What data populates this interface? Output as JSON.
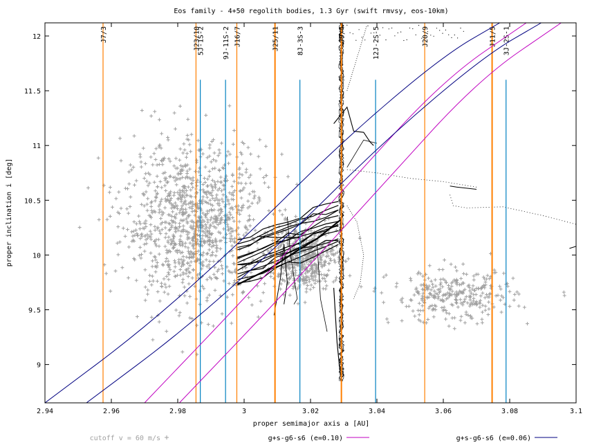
{
  "chart_data": {
    "type": "scatter",
    "title": "Eos family - 4+50 regolith bodies, 1.3 Gyr (swift rmvsy, eos-10km)",
    "xlabel": "proper semimajor axis a [AU]",
    "ylabel": "proper inclination i [deg]",
    "xlim": [
      2.94,
      3.1
    ],
    "ylim": [
      8.65,
      12.12
    ],
    "x_ticks": [
      {
        "value": 2.94,
        "label": "2.94"
      },
      {
        "value": 2.96,
        "label": "2.96"
      },
      {
        "value": 2.98,
        "label": "2.98"
      },
      {
        "value": 3.0,
        "label": "3"
      },
      {
        "value": 3.02,
        "label": "3.02"
      },
      {
        "value": 3.04,
        "label": "3.04"
      },
      {
        "value": 3.06,
        "label": "3.06"
      },
      {
        "value": 3.08,
        "label": "3.08"
      },
      {
        "value": 3.1,
        "label": "3.1"
      }
    ],
    "y_ticks": [
      {
        "value": 9,
        "label": "9"
      },
      {
        "value": 9.5,
        "label": "9.5"
      },
      {
        "value": 10,
        "label": "10"
      },
      {
        "value": 10.5,
        "label": "10.5"
      },
      {
        "value": 11,
        "label": "11"
      },
      {
        "value": 11.5,
        "label": "11.5"
      },
      {
        "value": 12,
        "label": "12"
      }
    ],
    "grid": false,
    "legend_position": "bottom",
    "colors": {
      "family": "#a0a0a0",
      "resonance_jupiter": "#ff7f00",
      "resonance_three_body": "#0080c0",
      "secular_e010": "#c000c0",
      "secular_e006": "#000080",
      "tracks": "#000000"
    },
    "series": [
      {
        "name": "cutoff v = 60 m/s",
        "marker": "+",
        "clusters": [
          {
            "center": [
              2.985,
              10.3
            ],
            "spread": [
              0.0125,
              0.42
            ],
            "count": 1150
          },
          {
            "center": [
              3.063,
              9.62
            ],
            "spread": [
              0.011,
              0.14
            ],
            "count": 320
          },
          {
            "center": [
              3.018,
              9.98
            ],
            "spread": [
              0.006,
              0.17
            ],
            "count": 520
          }
        ]
      },
      {
        "name": "g+s-g6-s6 (e=0.10)",
        "kind": "line",
        "x": [
          2.97,
          3.0,
          3.03,
          3.06,
          3.085
        ],
        "y": [
          8.65,
          9.6,
          10.6,
          11.6,
          12.12
        ]
      },
      {
        "name": "g+s-g6-s6 (e=0.06)",
        "kind": "line",
        "x": [
          2.94,
          2.97,
          3.0,
          3.03,
          3.06,
          3.077
        ],
        "y": [
          8.65,
          9.33,
          10.15,
          11.05,
          11.82,
          12.12
        ]
      }
    ],
    "resonances": [
      {
        "label": "J7/3",
        "a": 2.9575,
        "family": "jupiter"
      },
      {
        "label": "J23/10",
        "a": 2.9855,
        "family": "jupiter"
      },
      {
        "label": "5J-1S-2",
        "a": 2.9868,
        "family": "three-body"
      },
      {
        "label": "9J-11S-2",
        "a": 2.9944,
        "family": "three-body"
      },
      {
        "label": "J16/7",
        "a": 2.9978,
        "family": "jupiter"
      },
      {
        "label": "J25/11",
        "a": 3.0093,
        "family": "jupiter"
      },
      {
        "label": "8J-3S-3",
        "a": 3.0168,
        "family": "three-body"
      },
      {
        "label": "J9/4",
        "a": 3.0293,
        "family": "jupiter"
      },
      {
        "label": "12J-2S-5",
        "a": 3.0396,
        "family": "three-body"
      },
      {
        "label": "J20/9",
        "a": 3.0544,
        "family": "jupiter"
      },
      {
        "label": "J11/5",
        "a": 3.0747,
        "family": "jupiter"
      },
      {
        "label": "3J-2S-1",
        "a": 3.0789,
        "family": "three-body"
      }
    ]
  }
}
